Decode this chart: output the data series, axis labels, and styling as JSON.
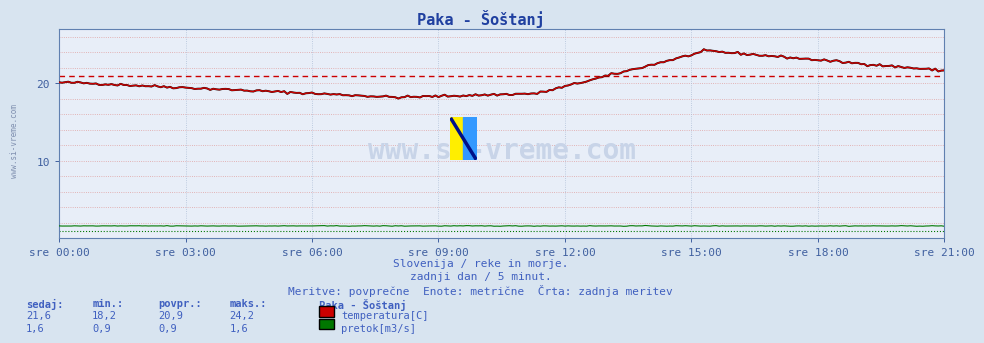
{
  "title": "Paka - Šoštanj",
  "bg_color": "#d8e4f0",
  "plot_bg_color": "#e8eef8",
  "xlabel_color": "#4060a0",
  "title_color": "#2040a0",
  "ylim": [
    0,
    27
  ],
  "yticks": [
    10,
    20
  ],
  "footer_line1": "Slovenija / reke in morje.",
  "footer_line2": "zadnji dan / 5 minut.",
  "footer_line3": "Meritve: povprečne  Enote: metrične  Črta: zadnja meritev",
  "footer_color": "#4060c0",
  "stats_label_color": "#4060c0",
  "stats_headers": [
    "sedaj:",
    "min.:",
    "povpr.:",
    "maks.:"
  ],
  "stats_temp": [
    "21,6",
    "18,2",
    "20,9",
    "24,2"
  ],
  "stats_flow": [
    "1,6",
    "0,9",
    "0,9",
    "1,6"
  ],
  "station_name": "Paka - Šoštanj",
  "legend_temp": "temperatura[C]",
  "legend_flow": "pretok[m3/s]",
  "temp_color": "#cc0000",
  "flow_color": "#007700",
  "watermark_text": "www.si-vreme.com",
  "watermark_color": "#c8d4e8",
  "sidebar_text": "www.si-vreme.com",
  "sidebar_color": "#8090b0",
  "n_points": 288,
  "temp_avg": 20.9,
  "flow_avg": 0.9,
  "tick_labels": [
    "sre 00:00",
    "sre 03:00",
    "sre 06:00",
    "sre 09:00",
    "sre 12:00",
    "sre 15:00",
    "sre 18:00",
    "sre 21:00"
  ]
}
